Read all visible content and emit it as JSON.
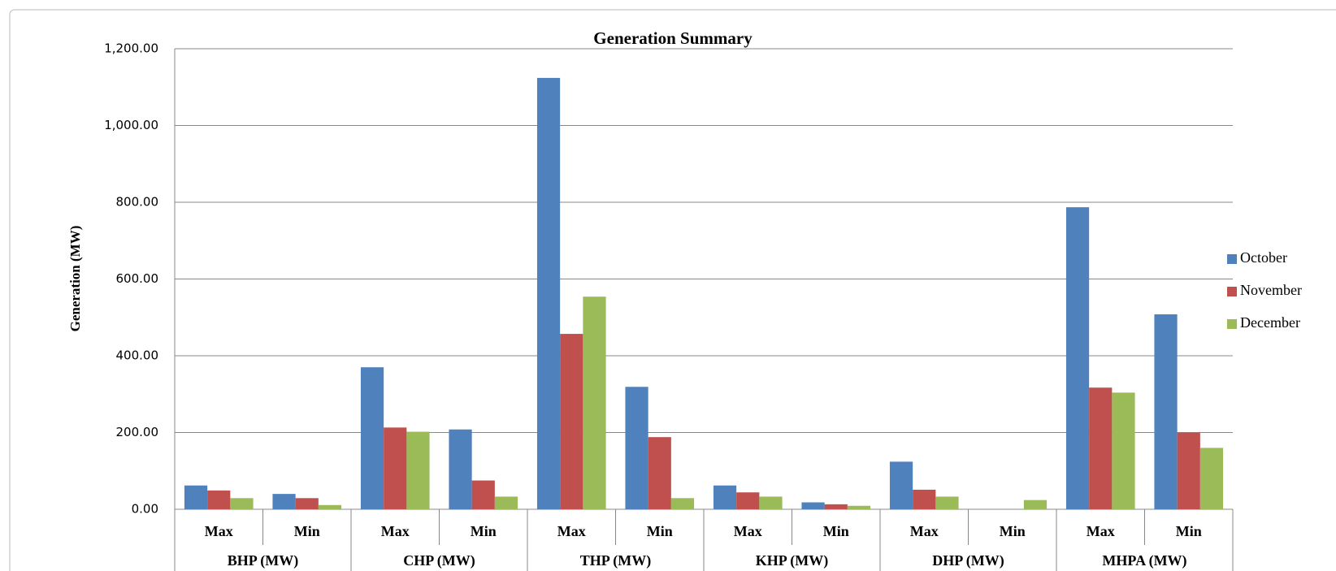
{
  "chart_data": {
    "type": "bar",
    "title": "Generation Summary",
    "y_label": "Generation  (MW)",
    "categories": [
      "Max",
      "Min",
      "Max",
      "Min",
      "Max",
      "Min",
      "Max",
      "Min",
      "Max",
      "Min",
      "Max",
      "Min"
    ],
    "groups": [
      "BHP (MW)",
      "CHP (MW)",
      "THP (MW)",
      "KHP (MW)",
      "DHP (MW)",
      "MHPA (MW)"
    ],
    "series": [
      {
        "name": "October",
        "color": "#4f81bd",
        "values": [
          62,
          40,
          370,
          208,
          1124,
          319,
          62,
          18,
          124,
          0,
          787,
          508
        ]
      },
      {
        "name": "November",
        "color": "#c0504d",
        "values": [
          49,
          29,
          213,
          75,
          457,
          188,
          44,
          13,
          51,
          0,
          317,
          200
        ]
      },
      {
        "name": "December",
        "color": "#9bbb59",
        "values": [
          29,
          11,
          202,
          33,
          554,
          29,
          33,
          9,
          33,
          24,
          304,
          160
        ]
      }
    ],
    "ylim": [
      0,
      1200
    ],
    "yticks": [
      {
        "value": 0,
        "label": "0.00"
      },
      {
        "value": 200,
        "label": "200.00"
      },
      {
        "value": 400,
        "label": "400.00"
      },
      {
        "value": 600,
        "label": "600.00"
      },
      {
        "value": 800,
        "label": "800.00"
      },
      {
        "value": 1000,
        "label": "1,000.00"
      },
      {
        "value": 1200,
        "label": "1,200.00"
      }
    ],
    "grid": true,
    "legend": "right"
  }
}
